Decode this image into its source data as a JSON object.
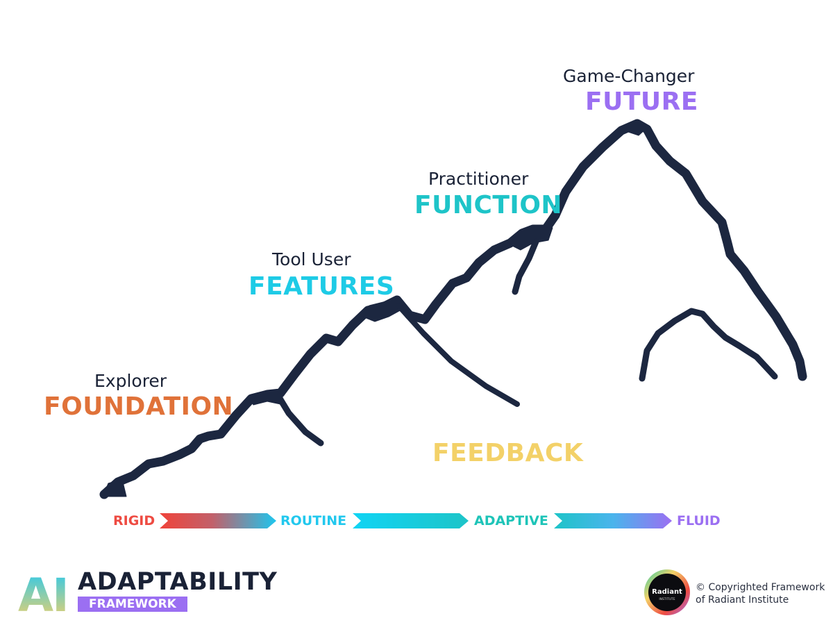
{
  "stages": [
    {
      "role": "Explorer",
      "name": "FOUNDATION",
      "color": "#e07239"
    },
    {
      "role": "Tool User",
      "name": "FEATURES",
      "color": "#1ecbe6"
    },
    {
      "role": "Practitioner",
      "name": "FUNCTION",
      "color": "#1ec4c8"
    },
    {
      "role": "Game-Changer",
      "name": "FUTURE",
      "color": "#9b6ff2"
    }
  ],
  "feedback": {
    "label": "FEEDBACK",
    "color": "#f3d168"
  },
  "scale": {
    "labels": [
      {
        "text": "RIGID",
        "color": "#ee4b42"
      },
      {
        "text": "ROUTINE",
        "color": "#22c8ee"
      },
      {
        "text": "ADAPTIVE",
        "color": "#1ec4b8"
      },
      {
        "text": "FLUID",
        "color": "#9b6ff2"
      }
    ]
  },
  "brand": {
    "logo_letters": "AI",
    "title": "ADAPTABILITY",
    "subtitle": "FRAMEWORK"
  },
  "footer": {
    "badge_text": "Radiant",
    "badge_subtext": "INSTITUTE",
    "copyright_line1": "© Copyrighted Framework",
    "copyright_line2": "of Radiant Institute"
  },
  "colors": {
    "mountain": "#1c2740",
    "title": "#1a2236"
  }
}
